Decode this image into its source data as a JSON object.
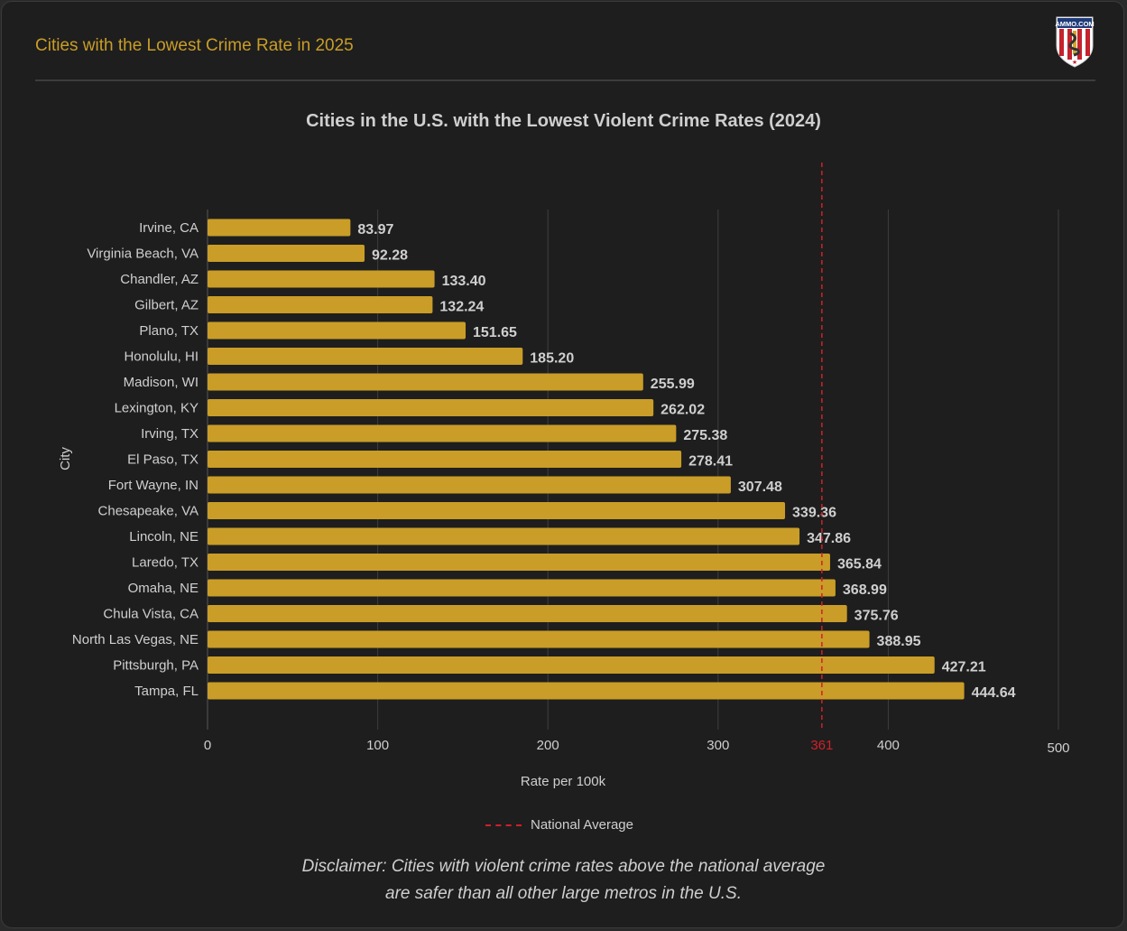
{
  "header": {
    "title": "Cities with the Lowest Crime Rate in 2025",
    "logo_text": "AMMO.COM"
  },
  "chart_data": {
    "type": "bar",
    "orientation": "horizontal",
    "title": "Cities in the U.S. with the Lowest Violent Crime Rates (2024)",
    "xlabel": "Rate per 100k",
    "ylabel": "City",
    "xlim": [
      0,
      500
    ],
    "xticks": [
      0,
      100,
      200,
      300,
      400,
      500
    ],
    "grid": true,
    "bar_color": "#c99d27",
    "categories": [
      "Irvine, CA",
      "Virginia Beach, VA",
      "Chandler, AZ",
      "Gilbert, AZ",
      "Plano, TX",
      "Honolulu, HI",
      "Madison, WI",
      "Lexington, KY",
      "Irving, TX",
      "El Paso, TX",
      "Fort Wayne, IN",
      "Chesapeake, VA",
      "Lincoln, NE",
      "Laredo, TX",
      "Omaha, NE",
      "Chula Vista, CA",
      "North Las Vegas, NE",
      "Pittsburgh, PA",
      "Tampa, FL"
    ],
    "values": [
      83.97,
      92.28,
      133.4,
      132.24,
      151.65,
      185.2,
      255.99,
      262.02,
      275.38,
      278.41,
      307.48,
      339.36,
      347.86,
      365.84,
      368.99,
      375.76,
      388.95,
      427.21,
      444.64
    ],
    "data_labels": [
      "83.97",
      "92.28",
      "133.40",
      "132.24",
      "151.65",
      "185.20",
      "255.99",
      "262.02",
      "275.38",
      "278.41",
      "307.48",
      "339.36",
      "347.86",
      "365.84",
      "368.99",
      "375.76",
      "388.95",
      "427.21",
      "444.64"
    ],
    "reference_line": {
      "name": "National Average",
      "value": 361,
      "label": "361",
      "color": "#d0202a",
      "style": "dashed"
    },
    "legend": {
      "placement": "bottom",
      "entries": [
        "National Average"
      ]
    }
  },
  "disclaimer": {
    "line1": "Disclaimer: Cities with violent crime rates above the national average",
    "line2": "are safer than all other large metros in the U.S."
  }
}
